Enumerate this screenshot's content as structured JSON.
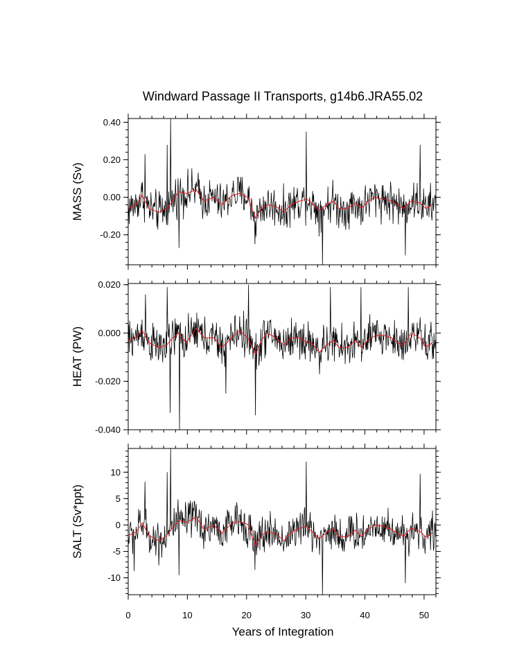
{
  "chart_data": {
    "type": "line",
    "title": "Windward Passage II Transports, g14b6.JRA55.02",
    "xlabel": "Years of Integration",
    "xlim": [
      0,
      52
    ],
    "x_ticks": [
      0,
      10,
      20,
      30,
      40,
      50
    ],
    "x_tick_labels": [
      "0",
      "10",
      "20",
      "30",
      "40",
      "50"
    ],
    "raw_color": "#000000",
    "smooth_color": "#e8141a",
    "panels": [
      {
        "ylabel": "MASS (Sv)",
        "ylim": [
          -0.36,
          0.42
        ],
        "y_ticks": [
          0.4,
          0.2,
          0.0,
          -0.2
        ],
        "y_tick_labels": [
          "0.40",
          "0.20",
          "0.00",
          "-0.20"
        ],
        "noise_amp": 0.075,
        "spikes": [
          [
            7.2,
            0.42
          ],
          [
            30.1,
            0.35
          ],
          [
            32.8,
            -0.36
          ],
          [
            21.4,
            -0.25
          ],
          [
            6.6,
            0.28
          ],
          [
            49.3,
            0.28
          ],
          [
            2.8,
            0.23
          ],
          [
            8.6,
            -0.27
          ],
          [
            46.8,
            -0.31
          ]
        ],
        "smooth": [
          [
            0,
            -0.06
          ],
          [
            1.3,
            -0.04
          ],
          [
            2.4,
            0.01
          ],
          [
            3.5,
            -0.06
          ],
          [
            5.2,
            -0.08
          ],
          [
            6.5,
            -0.06
          ],
          [
            7.5,
            -0.02
          ],
          [
            8.5,
            0.03
          ],
          [
            9.8,
            0.02
          ],
          [
            11.5,
            0.04
          ],
          [
            12.8,
            -0.02
          ],
          [
            14.5,
            0.0
          ],
          [
            15.8,
            -0.04
          ],
          [
            17.5,
            0.01
          ],
          [
            18.8,
            0.02
          ],
          [
            20.2,
            0.0
          ],
          [
            21.5,
            -0.11
          ],
          [
            22.5,
            -0.06
          ],
          [
            23.5,
            -0.04
          ],
          [
            25,
            -0.05
          ],
          [
            26.3,
            -0.08
          ],
          [
            27.5,
            -0.04
          ],
          [
            29,
            -0.02
          ],
          [
            30.2,
            -0.01
          ],
          [
            31,
            -0.03
          ],
          [
            32.3,
            -0.07
          ],
          [
            33.5,
            -0.04
          ],
          [
            34.7,
            -0.02
          ],
          [
            35.6,
            -0.06
          ],
          [
            37,
            -0.06
          ],
          [
            38.4,
            -0.03
          ],
          [
            39.4,
            -0.06
          ],
          [
            40.5,
            -0.02
          ],
          [
            41.8,
            0.0
          ],
          [
            43.2,
            -0.01
          ],
          [
            44.5,
            -0.02
          ],
          [
            45.5,
            -0.04
          ],
          [
            46.5,
            -0.06
          ],
          [
            47.8,
            -0.02
          ],
          [
            49.3,
            -0.03
          ],
          [
            50.3,
            -0.06
          ],
          [
            51.4,
            -0.04
          ]
        ]
      },
      {
        "ylabel": "HEAT (PW)",
        "ylim": [
          -0.04,
          0.0205
        ],
        "y_ticks": [
          0.02,
          0.0,
          -0.02,
          -0.04
        ],
        "y_tick_labels": [
          "0.020",
          "0.000",
          "-0.020",
          "-0.040"
        ],
        "noise_amp": 0.006,
        "spikes": [
          [
            8.7,
            -0.04
          ],
          [
            20.3,
            0.02
          ],
          [
            7.1,
            -0.033
          ],
          [
            21.5,
            -0.034
          ],
          [
            16.5,
            -0.025
          ],
          [
            6.6,
            0.019
          ],
          [
            34.2,
            0.019
          ],
          [
            39.3,
            0.019
          ],
          [
            47.3,
            0.019
          ],
          [
            2.9,
            0.016
          ]
        ],
        "smooth": [
          [
            0,
            -0.003
          ],
          [
            1.3,
            -0.002
          ],
          [
            2.4,
            0.001
          ],
          [
            3.5,
            -0.004
          ],
          [
            5.2,
            -0.006
          ],
          [
            6.5,
            -0.005
          ],
          [
            7.5,
            -0.002
          ],
          [
            8.5,
            0.0
          ],
          [
            9.8,
            -0.004
          ],
          [
            11.5,
            0.002
          ],
          [
            12.8,
            -0.002
          ],
          [
            14.5,
            -0.002
          ],
          [
            15.8,
            -0.006
          ],
          [
            17.5,
            -0.002
          ],
          [
            18.8,
            0.001
          ],
          [
            20.2,
            -0.002
          ],
          [
            21.5,
            -0.009
          ],
          [
            22.5,
            -0.003
          ],
          [
            23.5,
            0.0
          ],
          [
            25,
            -0.002
          ],
          [
            26.3,
            -0.005
          ],
          [
            27.5,
            -0.002
          ],
          [
            29,
            -0.002
          ],
          [
            30.2,
            -0.004
          ],
          [
            31,
            -0.004
          ],
          [
            32.3,
            -0.008
          ],
          [
            33.5,
            -0.005
          ],
          [
            34.7,
            -0.003
          ],
          [
            35.6,
            -0.006
          ],
          [
            37,
            -0.006
          ],
          [
            38.4,
            -0.003
          ],
          [
            39.4,
            -0.006
          ],
          [
            40.5,
            -0.003
          ],
          [
            41.8,
            -0.001
          ],
          [
            43.2,
            -0.001
          ],
          [
            44.5,
            -0.002
          ],
          [
            45.5,
            -0.004
          ],
          [
            46.5,
            -0.005
          ],
          [
            47.8,
            0.0
          ],
          [
            49.3,
            -0.002
          ],
          [
            50.3,
            -0.006
          ],
          [
            51.4,
            -0.004
          ]
        ]
      },
      {
        "ylabel": "SALT (Sv*ppt)",
        "ylim": [
          -13.2,
          14.5
        ],
        "y_ticks": [
          10,
          5,
          0,
          -5,
          -10
        ],
        "y_tick_labels": [
          "10",
          "5",
          "0",
          "-5",
          "-10"
        ],
        "noise_amp": 2.6,
        "spikes": [
          [
            7.2,
            14.5
          ],
          [
            30.1,
            12
          ],
          [
            32.8,
            -13.2
          ],
          [
            21.4,
            -8.5
          ],
          [
            6.6,
            10
          ],
          [
            49.3,
            9.7
          ],
          [
            2.8,
            8.2
          ],
          [
            8.6,
            -9.5
          ],
          [
            46.8,
            -11
          ],
          [
            1.0,
            -8.7
          ]
        ],
        "smooth": [
          [
            0,
            -2
          ],
          [
            1.3,
            -1.4
          ],
          [
            2.4,
            0.4
          ],
          [
            3.5,
            -2
          ],
          [
            5.2,
            -3
          ],
          [
            6.5,
            -2
          ],
          [
            7.5,
            -0.5
          ],
          [
            8.5,
            0.8
          ],
          [
            9.8,
            0.5
          ],
          [
            11.5,
            1.5
          ],
          [
            12.8,
            -0.8
          ],
          [
            14.5,
            0
          ],
          [
            15.8,
            -1.6
          ],
          [
            17.5,
            0.3
          ],
          [
            18.8,
            0.7
          ],
          [
            20.2,
            0.1
          ],
          [
            21.5,
            -4
          ],
          [
            22.5,
            -2
          ],
          [
            23.5,
            -1.3
          ],
          [
            25,
            -1.7
          ],
          [
            26.3,
            -3
          ],
          [
            27.5,
            -1.4
          ],
          [
            29,
            -0.6
          ],
          [
            30.2,
            -0.3
          ],
          [
            31,
            -1.2
          ],
          [
            32.3,
            -2.6
          ],
          [
            33.5,
            -1.4
          ],
          [
            34.7,
            -0.8
          ],
          [
            35.6,
            -2.2
          ],
          [
            37,
            -2.2
          ],
          [
            38.4,
            -1
          ],
          [
            39.4,
            -2.2
          ],
          [
            40.5,
            -0.8
          ],
          [
            41.8,
            0
          ],
          [
            43.2,
            -0.3
          ],
          [
            44.5,
            -0.8
          ],
          [
            45.5,
            -1.6
          ],
          [
            46.5,
            -2.2
          ],
          [
            47.8,
            -0.6
          ],
          [
            49.3,
            -1.2
          ],
          [
            50.3,
            -2.3
          ],
          [
            51.4,
            -1.5
          ]
        ]
      }
    ]
  }
}
